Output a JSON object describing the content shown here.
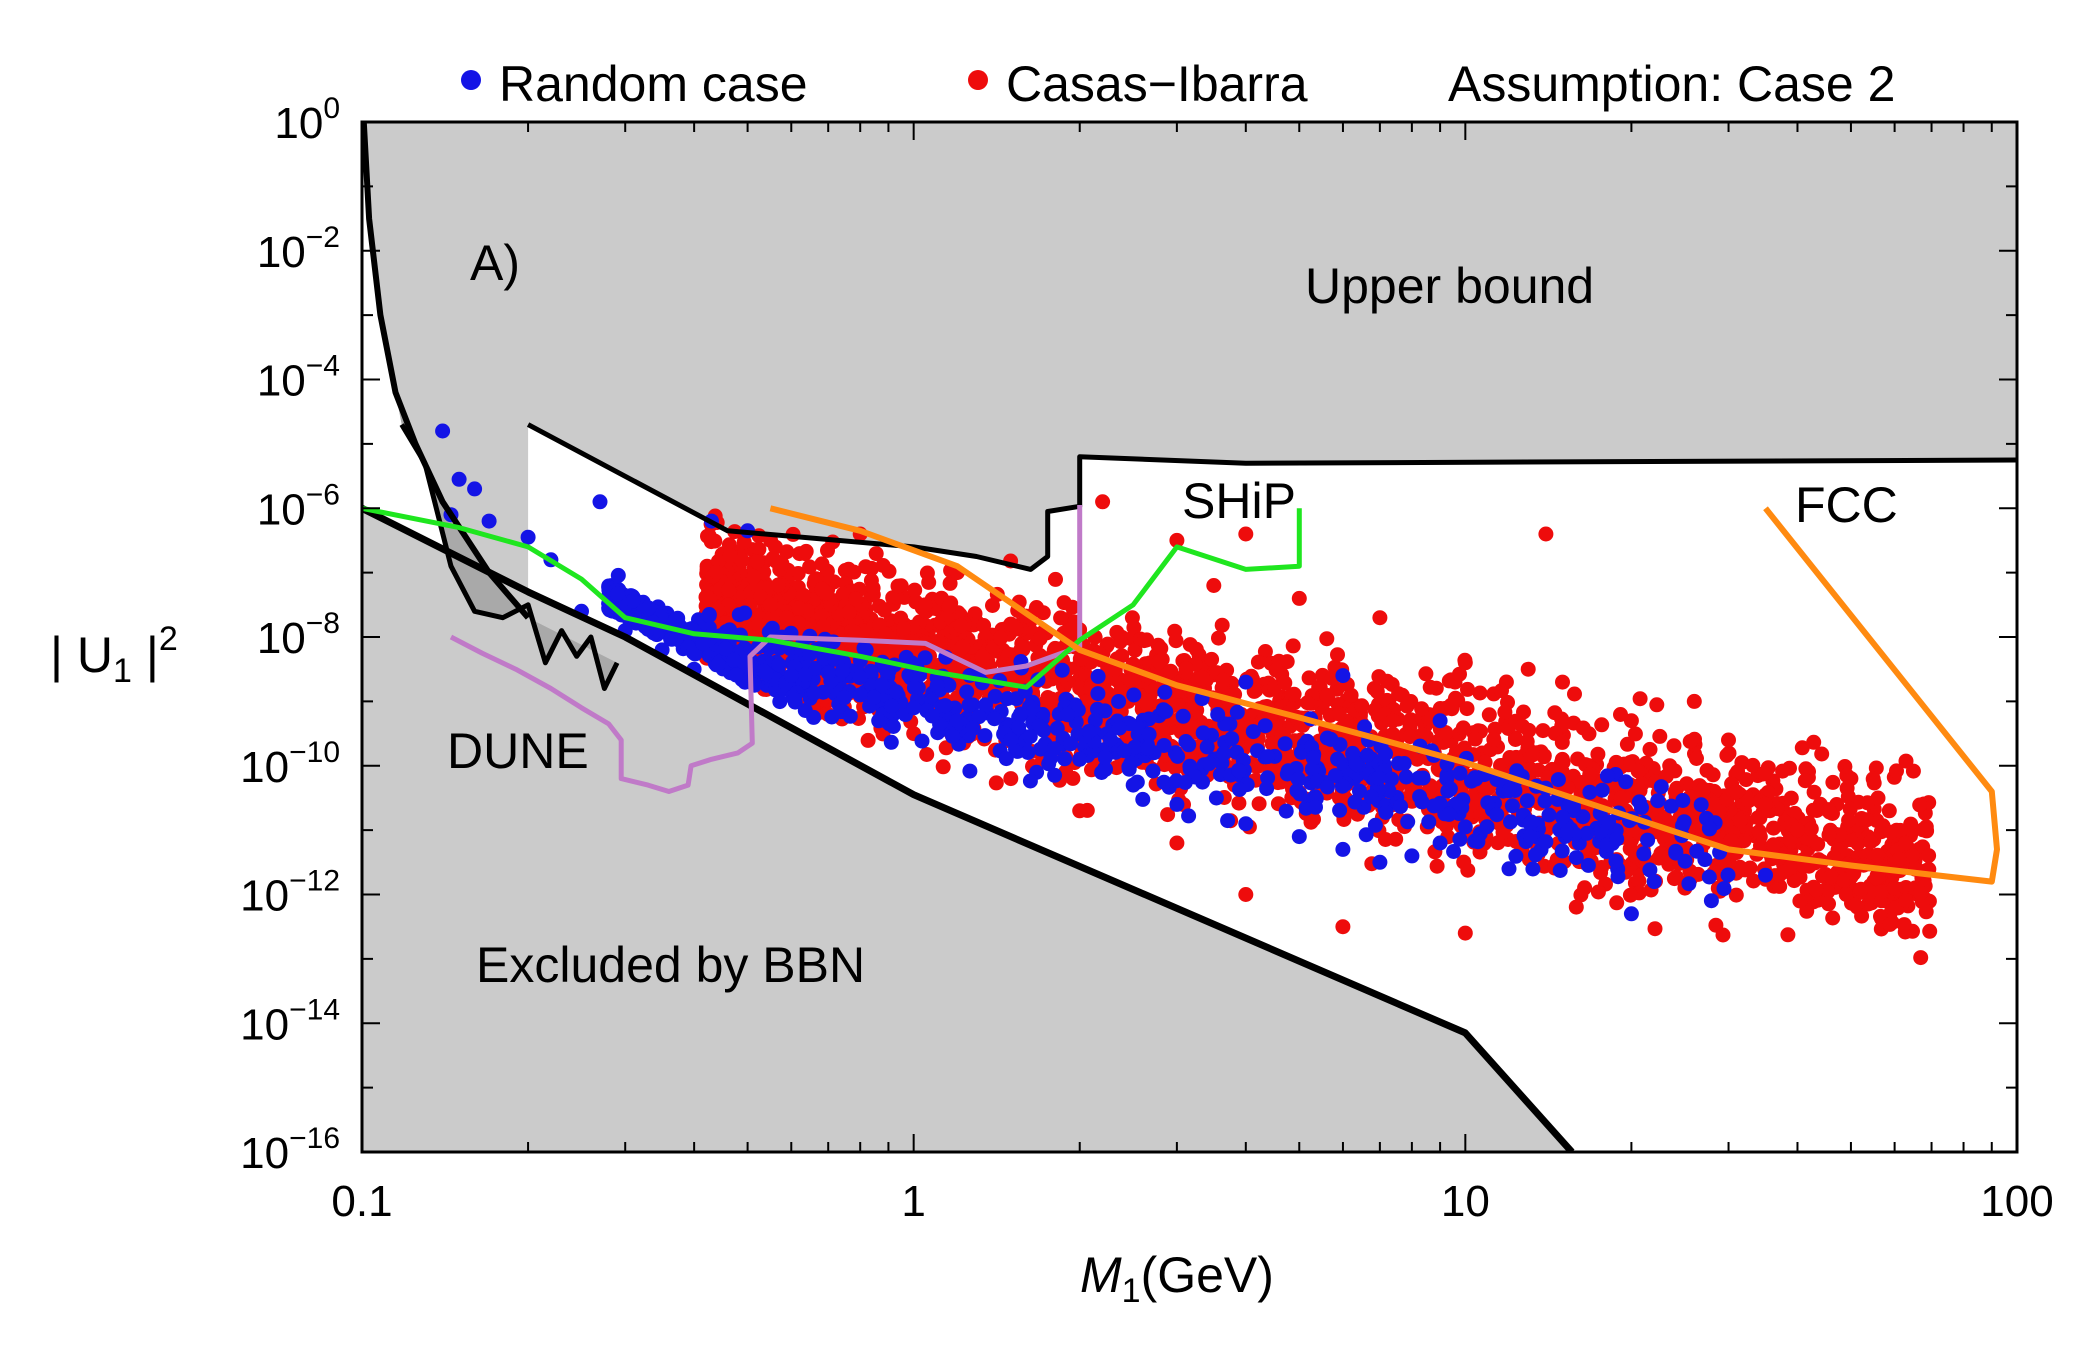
{
  "chart_data": {
    "type": "scatter",
    "title": "",
    "xlabel": "M1(GeV)",
    "xlabel_main": "M",
    "xlabel_sub": "1",
    "xlabel_unit": "(GeV)",
    "ylabel": "|U1|2",
    "ylabel_prefix": "| U",
    "ylabel_sub": "1",
    "ylabel_suffix": " |",
    "ylabel_sup": "2",
    "xscale": "log",
    "yscale": "log",
    "xlim": [
      0.1,
      100
    ],
    "ylim": [
      1e-16,
      1
    ],
    "x_ticks": [
      {
        "value": 0.1,
        "label": "0.1"
      },
      {
        "value": 1,
        "label": "1"
      },
      {
        "value": 10,
        "label": "10"
      },
      {
        "value": 100,
        "label": "100"
      }
    ],
    "y_ticks": [
      {
        "exp": 0,
        "base": "10",
        "label": "0"
      },
      {
        "exp": -2,
        "base": "10",
        "label": "−2"
      },
      {
        "exp": -4,
        "base": "10",
        "label": "−4"
      },
      {
        "exp": -6,
        "base": "10",
        "label": "−6"
      },
      {
        "exp": -8,
        "base": "10",
        "label": "−8"
      },
      {
        "exp": -10,
        "base": "10",
        "label": "−10"
      },
      {
        "exp": -12,
        "base": "10",
        "label": "−12"
      },
      {
        "exp": -14,
        "base": "10",
        "label": "−14"
      },
      {
        "exp": -16,
        "base": "10",
        "label": "−16"
      }
    ],
    "legend": [
      {
        "name": "Random case",
        "color": "#1414e6"
      },
      {
        "name": "Casas−Ibarra",
        "color": "#ee0c0c"
      }
    ],
    "assumption_text": "Assumption: Case 2",
    "panel_label": "A)",
    "region_labels": {
      "upper": "Upper bound",
      "bbn": "Excluded by BBN"
    },
    "colors": {
      "excluded_fill": "#cbcbcb",
      "small_region_fill": "#a9a9a9",
      "boundary": "#000000",
      "random": "#1414e6",
      "casas": "#ee0c0c",
      "dune": "#c07ac8",
      "ship": "#1fe61f",
      "fcc": "#ff8a10"
    },
    "experiments": [
      {
        "name": "DUNE",
        "label": "DUNE",
        "color": "#c07ac8",
        "points": [
          [
            0.145,
            -8.0
          ],
          [
            0.165,
            -8.25
          ],
          [
            0.19,
            -8.5
          ],
          [
            0.22,
            -8.8
          ],
          [
            0.25,
            -9.1
          ],
          [
            0.28,
            -9.35
          ],
          [
            0.295,
            -9.6
          ],
          [
            0.295,
            -10.2
          ],
          [
            0.33,
            -10.3
          ],
          [
            0.36,
            -10.4
          ],
          [
            0.39,
            -10.3
          ],
          [
            0.395,
            -10.0
          ],
          [
            0.43,
            -9.9
          ],
          [
            0.48,
            -9.8
          ],
          [
            0.51,
            -9.65
          ],
          [
            0.505,
            -8.3
          ],
          [
            0.55,
            -8.0
          ],
          [
            0.8,
            -8.05
          ],
          [
            1.05,
            -8.1
          ],
          [
            1.35,
            -8.55
          ],
          [
            1.6,
            -8.45
          ],
          [
            2.0,
            -8.15
          ],
          [
            2.0,
            -5.95
          ]
        ]
      },
      {
        "name": "SHiP",
        "label": "SHiP",
        "color": "#1fe61f",
        "points": [
          [
            0.1,
            -6.0
          ],
          [
            0.15,
            -6.3
          ],
          [
            0.2,
            -6.6
          ],
          [
            0.25,
            -7.1
          ],
          [
            0.3,
            -7.7
          ],
          [
            0.4,
            -7.95
          ],
          [
            0.55,
            -8.05
          ],
          [
            0.8,
            -8.3
          ],
          [
            1.1,
            -8.55
          ],
          [
            1.6,
            -8.78
          ],
          [
            2.0,
            -8.05
          ],
          [
            2.5,
            -7.5
          ],
          [
            3.0,
            -6.6
          ],
          [
            4.0,
            -6.95
          ],
          [
            5.0,
            -6.9
          ],
          [
            5.0,
            -6.0
          ]
        ]
      },
      {
        "name": "FCC",
        "label": "FCC",
        "color": "#ff8a10",
        "points": [
          [
            0.55,
            -6.0
          ],
          [
            0.8,
            -6.35
          ],
          [
            1.2,
            -6.9
          ],
          [
            2.0,
            -8.2
          ],
          [
            3.0,
            -8.75
          ],
          [
            5.0,
            -9.25
          ],
          [
            10.0,
            -9.95
          ],
          [
            20.0,
            -10.8
          ],
          [
            30.0,
            -11.3
          ],
          [
            50.0,
            -11.55
          ],
          [
            90.0,
            -11.8
          ],
          [
            92.0,
            -11.3
          ],
          [
            90.0,
            -10.4
          ],
          [
            35.0,
            -6.0
          ]
        ]
      }
    ],
    "upper_bound": [
      [
        0.2,
        -4.7
      ],
      [
        0.46,
        -6.35
      ],
      [
        1.0,
        -6.6
      ],
      [
        1.3,
        -6.75
      ],
      [
        1.63,
        -6.95
      ],
      [
        1.75,
        -6.75
      ],
      [
        1.75,
        -6.05
      ],
      [
        2.0,
        -5.97
      ],
      [
        2.0,
        -5.2
      ],
      [
        4.0,
        -5.3
      ],
      [
        100.0,
        -5.25
      ]
    ],
    "bbn_curve": [
      [
        0.1,
        -6.0
      ],
      [
        0.2,
        -7.3
      ],
      [
        0.3,
        -8.0
      ],
      [
        1.0,
        -10.45
      ],
      [
        10.0,
        -14.15
      ],
      [
        15.6,
        -16.0
      ]
    ],
    "bbn_top_curve": [
      [
        0.1,
        0.5
      ],
      [
        0.103,
        -1.5
      ],
      [
        0.108,
        -3.0
      ],
      [
        0.115,
        -4.2
      ],
      [
        0.125,
        -5.0
      ],
      [
        0.14,
        -5.9
      ],
      [
        0.17,
        -7.0
      ],
      [
        0.2,
        -7.7
      ]
    ],
    "jagged_edge": [
      [
        0.118,
        -4.7
      ],
      [
        0.13,
        -5.3
      ],
      [
        0.145,
        -6.9
      ],
      [
        0.16,
        -7.6
      ],
      [
        0.18,
        -7.7
      ],
      [
        0.2,
        -7.5
      ],
      [
        0.215,
        -8.4
      ],
      [
        0.23,
        -7.9
      ],
      [
        0.245,
        -8.3
      ],
      [
        0.26,
        -8.0
      ],
      [
        0.275,
        -8.8
      ],
      [
        0.29,
        -8.4
      ]
    ],
    "random_case_sample": [
      [
        0.14,
        -4.8
      ],
      [
        0.15,
        -5.55
      ],
      [
        0.16,
        -5.7
      ],
      [
        0.145,
        -6.1
      ],
      [
        0.17,
        -6.2
      ],
      [
        0.2,
        -6.45
      ],
      [
        0.22,
        -6.8
      ],
      [
        0.27,
        -5.9
      ],
      [
        0.43,
        -6.2
      ],
      [
        0.5,
        -6.35
      ],
      [
        0.25,
        -7.6
      ],
      [
        0.3,
        -7.9
      ],
      [
        0.35,
        -8.2
      ],
      [
        0.4,
        -8.5
      ],
      [
        0.6,
        -8.6
      ],
      [
        0.8,
        -8.9
      ],
      [
        1.0,
        -9.1
      ],
      [
        1.2,
        -9.3
      ],
      [
        1.5,
        -9.6
      ],
      [
        2.0,
        -9.9
      ],
      [
        2.5,
        -10.3
      ],
      [
        3.0,
        -10.6
      ],
      [
        4.0,
        -10.9
      ],
      [
        5.0,
        -11.1
      ],
      [
        6.0,
        -11.3
      ],
      [
        7.0,
        -11.5
      ],
      [
        8.0,
        -11.4
      ],
      [
        9.0,
        -11.2
      ],
      [
        10.0,
        -10.95
      ],
      [
        12.0,
        -11.6
      ],
      [
        15.0,
        -10.8
      ],
      [
        20.0,
        -12.3
      ],
      [
        22.0,
        -11.8
      ],
      [
        35.0,
        -11.7
      ],
      [
        4.0,
        -8.7
      ],
      [
        6.0,
        -8.6
      ],
      [
        9.0,
        -9.3
      ]
    ],
    "casas_ibarra_sample": [
      [
        2.2,
        -5.9
      ],
      [
        3.0,
        -6.5
      ],
      [
        4.0,
        -6.4
      ],
      [
        14.0,
        -6.4
      ],
      [
        3.5,
        -7.2
      ],
      [
        5.0,
        -7.4
      ],
      [
        7.0,
        -7.7
      ],
      [
        10.0,
        -8.4
      ],
      [
        13.0,
        -8.5
      ],
      [
        15.0,
        -8.7
      ],
      [
        20.0,
        -9.3
      ],
      [
        26.0,
        -9.0
      ],
      [
        30.0,
        -9.6
      ],
      [
        35.0,
        -10.6
      ],
      [
        40.0,
        -11.0
      ],
      [
        50.0,
        -10.2
      ],
      [
        60.0,
        -11.9
      ],
      [
        25.0,
        -11.9
      ],
      [
        10.0,
        -12.6
      ],
      [
        4.0,
        -12.0
      ],
      [
        6.0,
        -12.5
      ],
      [
        3.0,
        -11.2
      ],
      [
        2.0,
        -10.7
      ],
      [
        1.5,
        -10.2
      ],
      [
        1.0,
        -9.5
      ],
      [
        0.7,
        -8.6
      ],
      [
        0.55,
        -7.5
      ],
      [
        0.8,
        -6.4
      ],
      [
        1.2,
        -7.0
      ],
      [
        1.5,
        -7.8
      ]
    ]
  }
}
